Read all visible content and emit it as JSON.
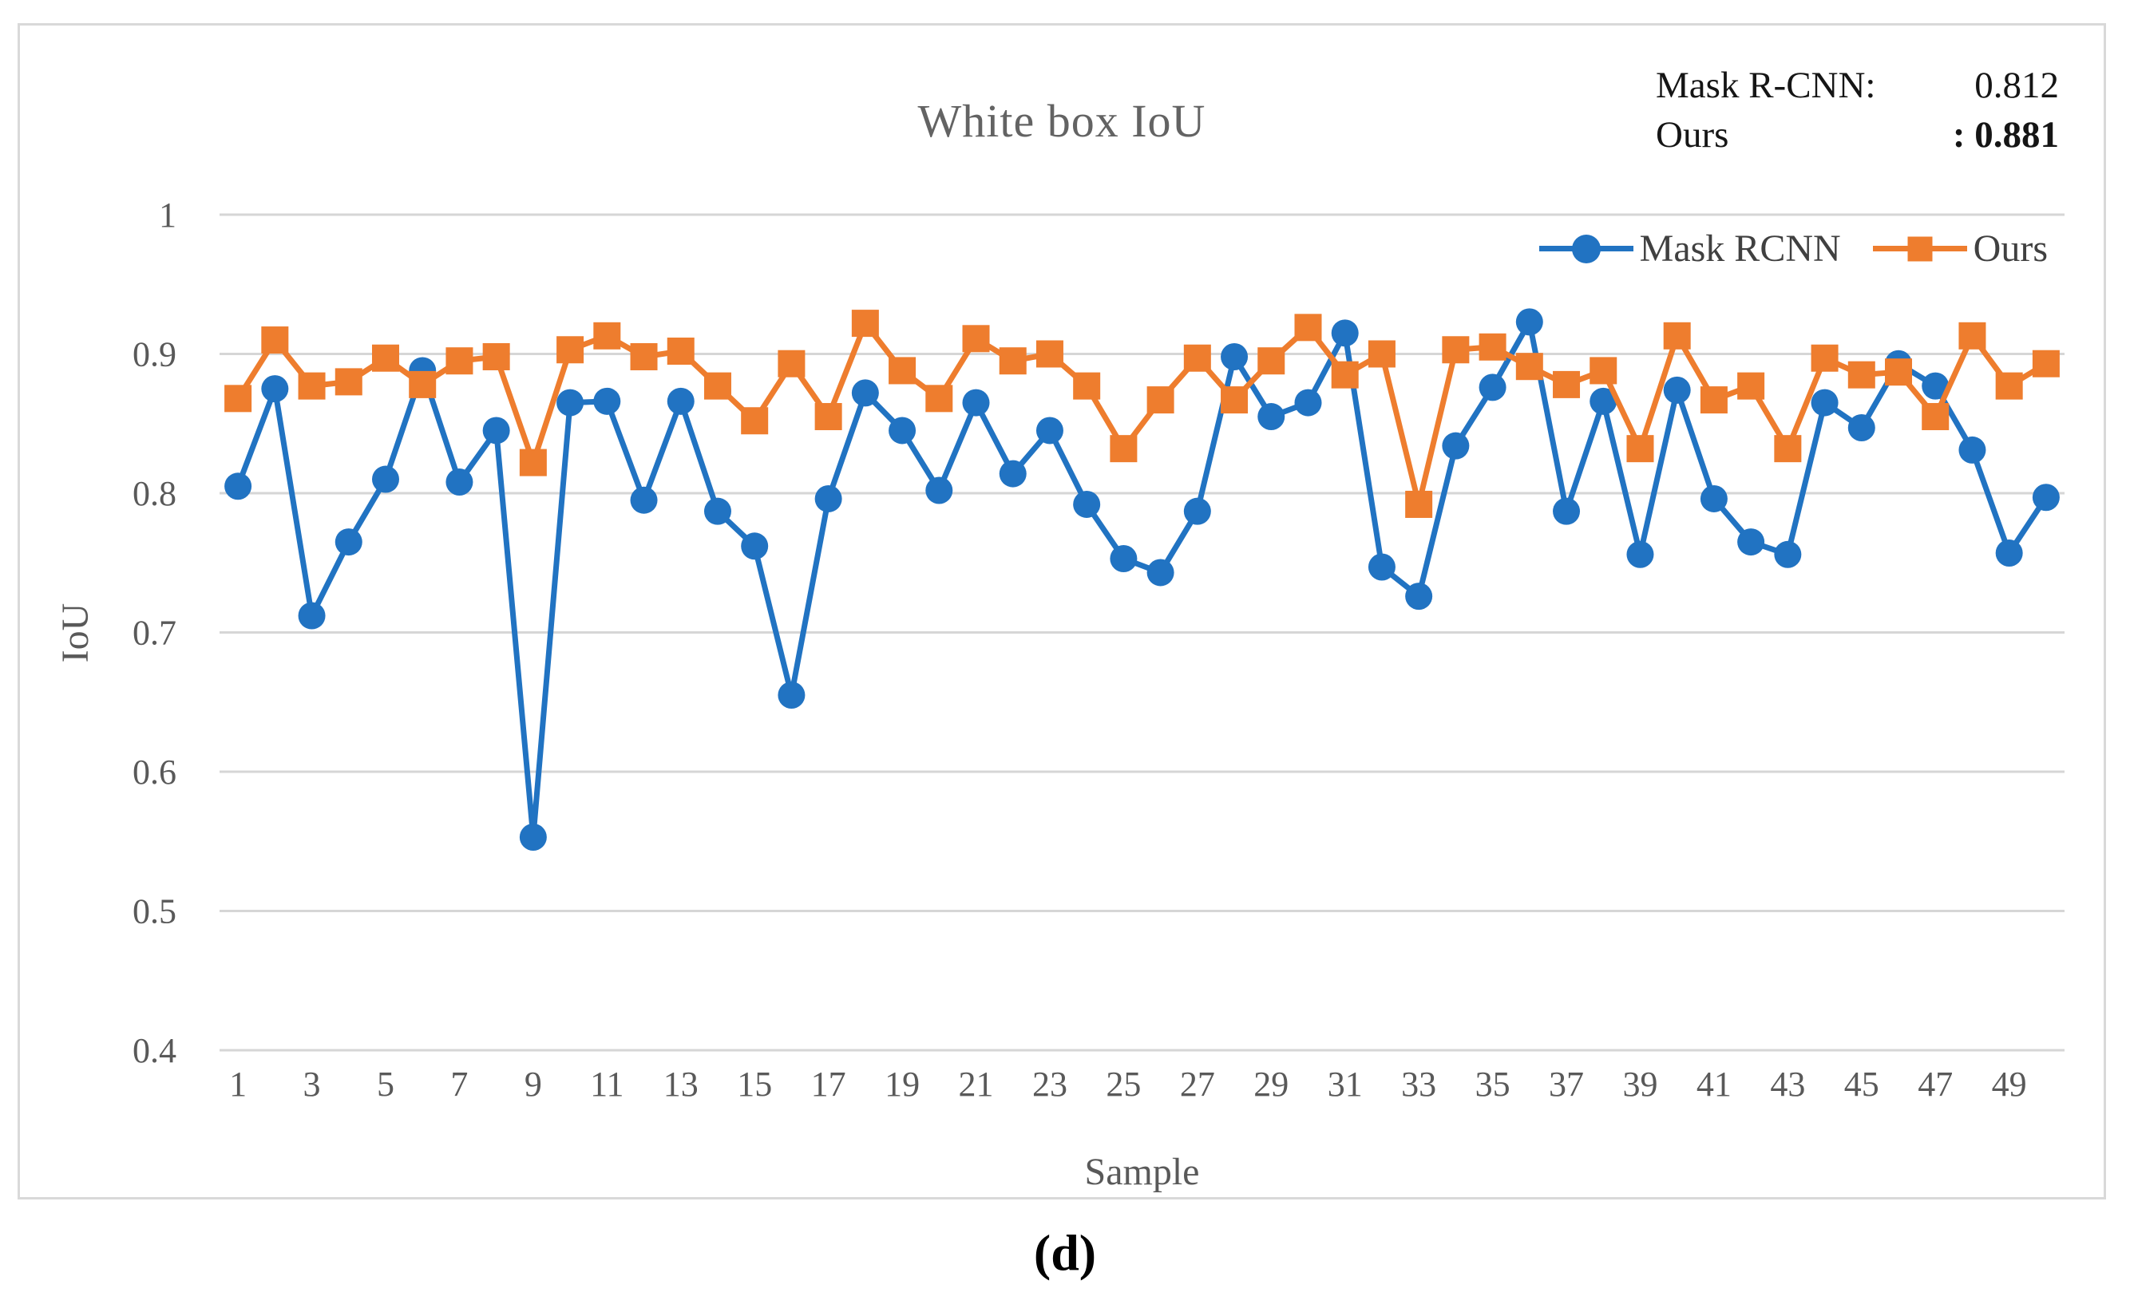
{
  "figure": {
    "title": "White box IoU",
    "caption": "(d)",
    "annotation": {
      "rows": [
        {
          "label": "Mask R-CNN:",
          "value": "0.812"
        },
        {
          "label": "Ours",
          "value": ": 0.881"
        }
      ]
    },
    "legend": [
      {
        "name": "Mask RCNN",
        "marker": "circle",
        "color": "#2173C2"
      },
      {
        "name": "Ours",
        "marker": "square",
        "color": "#EE7D2E"
      }
    ]
  },
  "chart_data": {
    "type": "line",
    "title": "White box IoU",
    "xlabel": "Sample",
    "ylabel": "IoU",
    "ylim": [
      0.4,
      1.0
    ],
    "grid": true,
    "grid_color": "#d6d6d6",
    "legend_position": "top-right",
    "yticks": [
      1.0,
      0.9,
      0.8,
      0.7,
      0.6,
      0.5,
      0.4
    ],
    "ytick_labels": [
      "1",
      "0.9",
      "0.8",
      "0.7",
      "0.6",
      "0.5",
      "0.4"
    ],
    "xticks": [
      1,
      3,
      5,
      7,
      9,
      11,
      13,
      15,
      17,
      19,
      21,
      23,
      25,
      27,
      29,
      31,
      33,
      35,
      37,
      39,
      41,
      43,
      45,
      47,
      49
    ],
    "x": [
      1,
      2,
      3,
      4,
      5,
      6,
      7,
      8,
      9,
      10,
      11,
      12,
      13,
      14,
      15,
      16,
      17,
      18,
      19,
      20,
      21,
      22,
      23,
      24,
      25,
      26,
      27,
      28,
      29,
      30,
      31,
      32,
      33,
      34,
      35,
      36,
      37,
      38,
      39,
      40,
      41,
      42,
      43,
      44,
      45,
      46,
      47,
      48,
      49,
      50
    ],
    "series": [
      {
        "name": "Mask RCNN",
        "color": "#2173C2",
        "marker": "circle",
        "values": [
          0.805,
          0.875,
          0.712,
          0.765,
          0.81,
          0.888,
          0.808,
          0.845,
          0.553,
          0.865,
          0.866,
          0.795,
          0.866,
          0.787,
          0.762,
          0.655,
          0.796,
          0.872,
          0.845,
          0.802,
          0.865,
          0.814,
          0.845,
          0.792,
          0.753,
          0.743,
          0.787,
          0.898,
          0.855,
          0.865,
          0.915,
          0.747,
          0.726,
          0.834,
          0.876,
          0.923,
          0.787,
          0.866,
          0.756,
          0.874,
          0.796,
          0.765,
          0.756,
          0.865,
          0.847,
          0.893,
          0.877,
          0.831,
          0.757,
          0.797
        ]
      },
      {
        "name": "Ours",
        "color": "#EE7D2E",
        "marker": "square",
        "values": [
          0.868,
          0.91,
          0.877,
          0.88,
          0.897,
          0.878,
          0.895,
          0.898,
          0.822,
          0.903,
          0.913,
          0.898,
          0.902,
          0.877,
          0.852,
          0.893,
          0.855,
          0.922,
          0.888,
          0.868,
          0.911,
          0.895,
          0.9,
          0.877,
          0.832,
          0.867,
          0.897,
          0.867,
          0.895,
          0.919,
          0.885,
          0.9,
          0.792,
          0.903,
          0.905,
          0.891,
          0.878,
          0.888,
          0.832,
          0.913,
          0.867,
          0.877,
          0.832,
          0.897,
          0.885,
          0.887,
          0.855,
          0.913,
          0.877,
          0.893
        ]
      }
    ],
    "averages": {
      "Mask R-CNN": 0.812,
      "Ours": 0.881
    }
  }
}
